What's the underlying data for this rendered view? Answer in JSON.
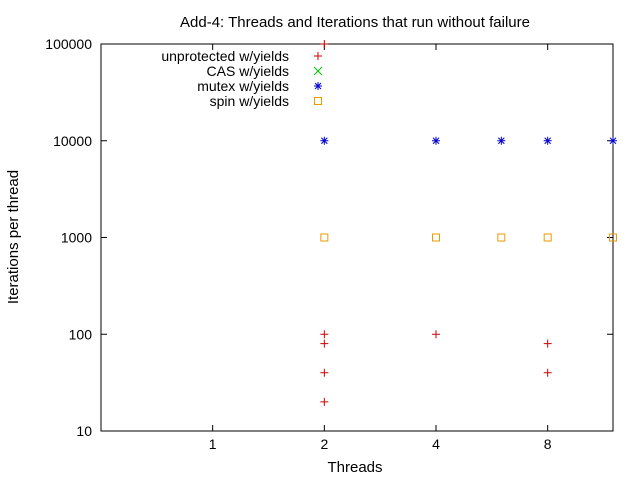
{
  "chart_data": {
    "type": "scatter",
    "title": "Add-4: Threads and Iterations that run without failure",
    "xlabel": "Threads",
    "ylabel": "Iterations per thread",
    "x_scale": "log2",
    "y_scale": "log10",
    "xlim": [
      0.5,
      12
    ],
    "ylim": [
      10,
      100000
    ],
    "x_ticks": [
      1,
      2,
      4,
      8
    ],
    "y_ticks": [
      10,
      100,
      1000,
      10000,
      100000
    ],
    "grid": false,
    "legend_position": "top-left",
    "series": [
      {
        "name": "unprotected w/yields",
        "marker": "plus",
        "color": "#cc0000",
        "points": [
          [
            2,
            100000
          ],
          [
            2,
            100
          ],
          [
            2,
            80
          ],
          [
            2,
            40
          ],
          [
            2,
            20
          ],
          [
            4,
            100
          ],
          [
            8,
            80
          ],
          [
            8,
            40
          ]
        ]
      },
      {
        "name": "CAS w/yields",
        "marker": "cross",
        "color": "#00c000",
        "points": []
      },
      {
        "name": "mutex w/yields",
        "marker": "star",
        "color": "#0000cc",
        "points": [
          [
            2,
            10000
          ],
          [
            4,
            10000
          ],
          [
            6,
            10000
          ],
          [
            8,
            10000
          ],
          [
            12,
            10000
          ]
        ]
      },
      {
        "name": "spin w/yields",
        "marker": "square",
        "color": "#ee9900",
        "points": [
          [
            2,
            1000
          ],
          [
            4,
            1000
          ],
          [
            6,
            1000
          ],
          [
            8,
            1000
          ],
          [
            12,
            1000
          ]
        ]
      }
    ]
  }
}
